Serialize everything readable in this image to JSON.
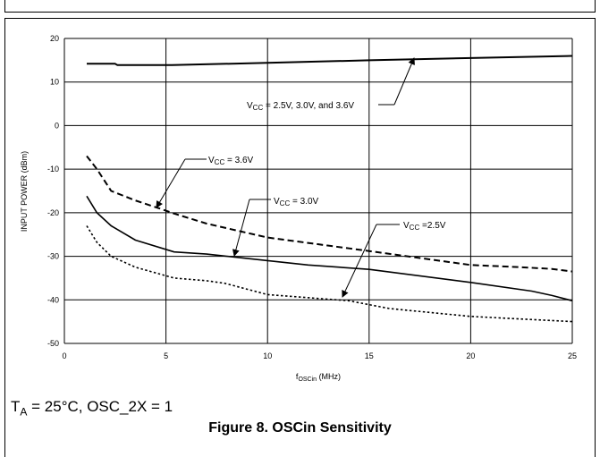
{
  "chart_data": {
    "type": "line",
    "xlabel": {
      "main": "f",
      "sub": "OSCin",
      "tail": " (MHz)"
    },
    "ylabel": "INPUT POWER (dBm)",
    "xlim": [
      0,
      25
    ],
    "ylim": [
      -50,
      20
    ],
    "xticks": [
      0,
      5,
      10,
      15,
      20,
      25
    ],
    "yticks": [
      -50,
      -40,
      -30,
      -20,
      -10,
      0,
      10,
      20
    ],
    "grid": true,
    "series": [
      {
        "style": "solid",
        "width": 2,
        "x": [
          1.1,
          2.5,
          2.6,
          5.3,
          10,
          15,
          20,
          25
        ],
        "y": [
          14.2,
          14.2,
          13.9,
          13.9,
          14.4,
          15.0,
          15.5,
          16.0
        ]
      },
      {
        "style": "dashed",
        "width": 2,
        "x": [
          1.1,
          1.6,
          2.3,
          3.5,
          4.8,
          5.4,
          7,
          10,
          15,
          20,
          22.5,
          24,
          25
        ],
        "y": [
          -7,
          -10,
          -15,
          -17.2,
          -19.2,
          -20.2,
          -22.5,
          -25.7,
          -28.8,
          -32,
          -32.5,
          -32.9,
          -33.5
        ]
      },
      {
        "style": "solid",
        "width": 1.6,
        "x": [
          1.1,
          1.6,
          2.3,
          3.5,
          5.4,
          7,
          10,
          12,
          15,
          20,
          23,
          24,
          25
        ],
        "y": [
          -16.2,
          -20,
          -23,
          -26.3,
          -29,
          -29.5,
          -31,
          -32,
          -33,
          -36,
          -38,
          -39,
          -40.2
        ]
      },
      {
        "style": "dotted",
        "width": 1.6,
        "x": [
          1.1,
          1.6,
          2.3,
          3.5,
          5.4,
          7,
          7.9,
          10,
          14,
          16,
          20,
          25
        ],
        "y": [
          -23,
          -26.8,
          -30,
          -32.5,
          -35,
          -35.6,
          -36.2,
          -38.8,
          -40.2,
          -42,
          -43.8,
          -45
        ]
      }
    ],
    "annotations": [
      {
        "pre": "V",
        "sub": "CC",
        "post": " = 2.5V, 3.0V, and 3.6V",
        "tx": 276,
        "ty": 121,
        "lx1": 423,
        "ly1": 117,
        "lx2": 441,
        "ly2": 117,
        "ax": 463,
        "ay": 65
      },
      {
        "pre": "V",
        "sub": "CC",
        "post": " = 3.6V",
        "tx": 233,
        "ty": 182,
        "lx1": 231,
        "ly1": 178,
        "lx2": 207,
        "ly2": 178,
        "ax": 175,
        "ay": 232
      },
      {
        "pre": "V",
        "sub": "CC",
        "post": " = 3.0V",
        "tx": 306,
        "ty": 228,
        "lx1": 303,
        "ly1": 223,
        "lx2": 279,
        "ly2": 223,
        "ax": 262,
        "ay": 286
      },
      {
        "pre": "V",
        "sub": "CC",
        "post": " =2.5V",
        "tx": 451,
        "ty": 255,
        "lx1": 447,
        "ly1": 251,
        "lx2": 421,
        "ly2": 251,
        "ax": 383,
        "ay": 332
      }
    ]
  },
  "conditions": {
    "t": "T",
    "t_sub": "A",
    "rest": " = 25°C, OSC_2X = 1"
  },
  "caption": "Figure 8. OSCin Sensitivity"
}
